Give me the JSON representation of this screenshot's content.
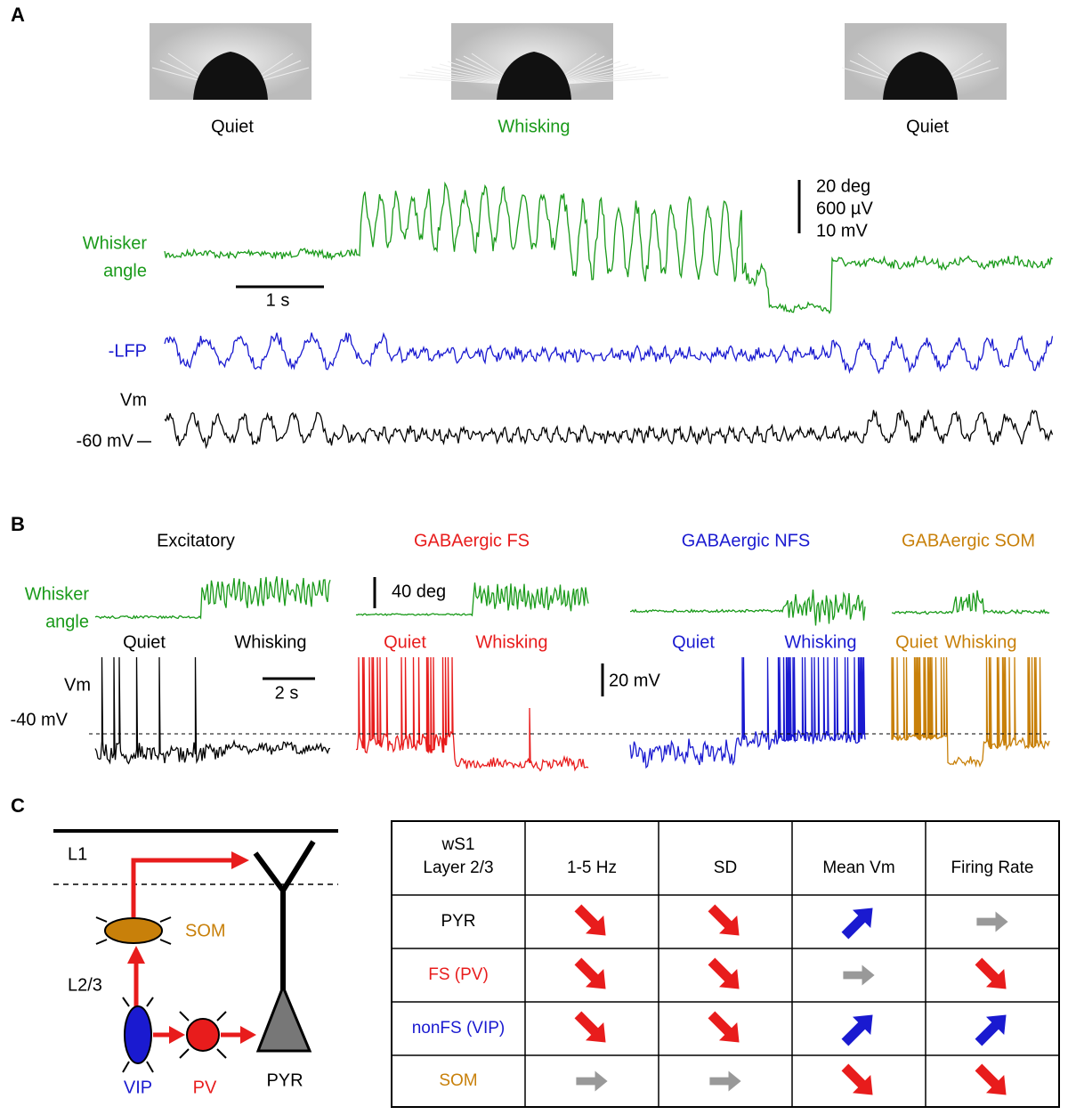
{
  "panels": [
    "A",
    "B",
    "C"
  ],
  "panel_a": {
    "states": [
      "Quiet",
      "Whisking",
      "Quiet"
    ],
    "whisker_label": [
      "Whisker",
      "angle"
    ],
    "lfp_label": "-LFP",
    "vm_label": "Vm",
    "baseline_label": "-60 mV",
    "scale": [
      "20 deg",
      "600 µV",
      "10 mV"
    ],
    "time_scale": "1 s"
  },
  "panel_b": {
    "cells": [
      "Excitatory",
      "GABAergic FS",
      "GABAergic NFS",
      "GABAergic SOM"
    ],
    "whisker_label": [
      "Whisker",
      "angle"
    ],
    "quiet": "Quiet",
    "whisking": "Whisking",
    "vm_label": "Vm",
    "level_label": "-40 mV",
    "angle_scale": "40 deg",
    "time_scale": "2 s",
    "vm_scale": "20 mV"
  },
  "panel_c": {
    "layers": [
      "L1",
      "L2/3"
    ],
    "cells": [
      "SOM",
      "VIP",
      "PV",
      "PYR"
    ],
    "table": {
      "header": [
        [
          "wS1",
          "Layer 2/3"
        ],
        "1-5 Hz",
        "SD",
        "Mean Vm",
        "Firing Rate"
      ],
      "rows": [
        "PYR",
        "FS (PV)",
        "nonFS (VIP)",
        "SOM"
      ]
    }
  }
}
